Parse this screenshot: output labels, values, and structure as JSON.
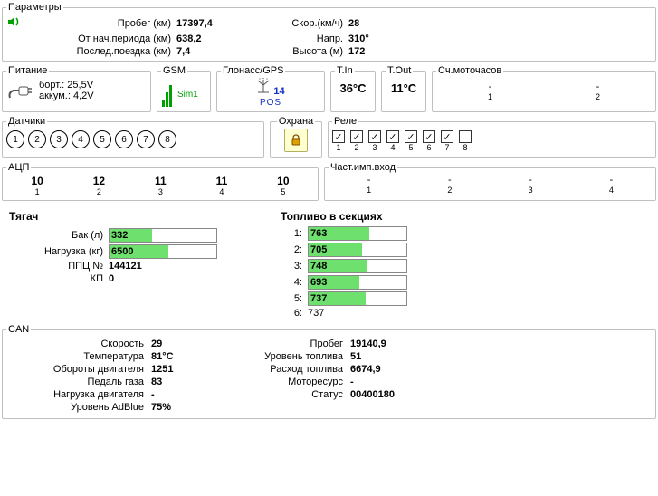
{
  "params": {
    "legend": "Параметры",
    "mileage_label": "Пробег (км)",
    "mileage": "17397,4",
    "period_label": "От нач.периода (км)",
    "period": "638,2",
    "trip_label": "Послед.поездка (км)",
    "trip": "7,4",
    "speed_label": "Скор.(км/ч)",
    "speed": "28",
    "heading_label": "Напр.",
    "heading": "310°",
    "alt_label": "Высота (м)",
    "alt": "172"
  },
  "power": {
    "legend": "Питание",
    "board_label": "борт.:",
    "board": "25,5V",
    "batt_label": "аккум.:",
    "batt": "4,2V"
  },
  "gsm": {
    "legend": "GSM",
    "sim": "Sim1",
    "bar_color": "#00a000"
  },
  "gps": {
    "legend": "Глонасс/GPS",
    "sats": "14",
    "mode": "POS"
  },
  "tin": {
    "legend": "T.In",
    "value": "36°C"
  },
  "tout": {
    "legend": "T.Out",
    "value": "11°C"
  },
  "motohr": {
    "legend": "Сч.моточасов",
    "v1": "-",
    "i1": "1",
    "v2": "-",
    "i2": "2"
  },
  "sensors": {
    "legend": "Датчики",
    "items": [
      "1",
      "2",
      "3",
      "4",
      "5",
      "6",
      "7",
      "8"
    ]
  },
  "guard": {
    "legend": "Охрана"
  },
  "relay": {
    "legend": "Реле",
    "items": [
      {
        "n": "1",
        "on": true
      },
      {
        "n": "2",
        "on": true
      },
      {
        "n": "3",
        "on": true
      },
      {
        "n": "4",
        "on": true
      },
      {
        "n": "5",
        "on": true
      },
      {
        "n": "6",
        "on": true
      },
      {
        "n": "7",
        "on": true
      },
      {
        "n": "8",
        "on": false
      }
    ]
  },
  "adc": {
    "legend": "АЦП",
    "items": [
      {
        "v": "10",
        "i": "1"
      },
      {
        "v": "12",
        "i": "2"
      },
      {
        "v": "11",
        "i": "3"
      },
      {
        "v": "11",
        "i": "4"
      },
      {
        "v": "10",
        "i": "5"
      }
    ]
  },
  "pulse": {
    "legend": "Част.имп.вход",
    "items": [
      {
        "v": "-",
        "i": "1"
      },
      {
        "v": "-",
        "i": "2"
      },
      {
        "v": "-",
        "i": "3"
      },
      {
        "v": "-",
        "i": "4"
      }
    ]
  },
  "tractor": {
    "title": "Тягач",
    "tank_label": "Бак (л)",
    "tank": "332",
    "tank_pct": 40,
    "load_label": "Нагрузка (кг)",
    "load": "6500",
    "load_pct": 55,
    "ppc_label": "ППЦ №",
    "ppc": "144121",
    "kp_label": "КП",
    "kp": "0"
  },
  "fuel": {
    "title": "Топливо в секциях",
    "sections": [
      {
        "n": "1:",
        "v": "763",
        "pct": 62
      },
      {
        "n": "2:",
        "v": "705",
        "pct": 55
      },
      {
        "n": "3:",
        "v": "748",
        "pct": 60
      },
      {
        "n": "4:",
        "v": "693",
        "pct": 52
      },
      {
        "n": "5:",
        "v": "737",
        "pct": 58
      },
      {
        "n": "6:",
        "v": "737",
        "pct": 0
      }
    ]
  },
  "can": {
    "legend": "CAN",
    "rows": [
      [
        "Скорость",
        "29",
        "Пробег",
        "19140,9"
      ],
      [
        "Температура",
        "81°C",
        "Уровень топлива",
        "51"
      ],
      [
        "Обороты двигателя",
        "1251",
        "Расход топлива",
        "6674,9"
      ],
      [
        "Педаль газа",
        "83",
        "Моторесурс",
        "-"
      ],
      [
        "Нагрузка двигателя",
        "-",
        "Статус",
        "00400180"
      ],
      [
        "Уровень AdBlue",
        "75%",
        "",
        ""
      ]
    ]
  },
  "colors": {
    "bar_fill": "#6ee06e",
    "border": "#c0c0c0"
  }
}
